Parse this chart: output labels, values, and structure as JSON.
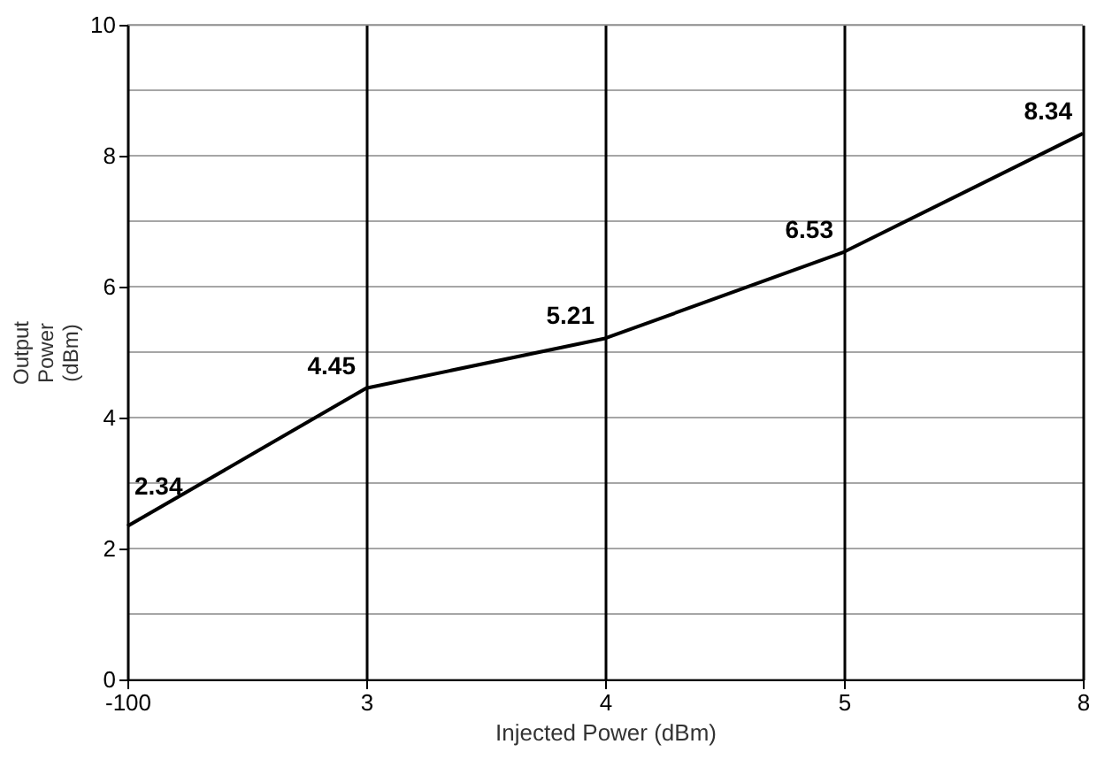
{
  "chart_data": {
    "type": "line",
    "xlabel": "Injected Power (dBm)",
    "ylabel": "Output Power (dBm)",
    "categories": [
      "-100",
      "3",
      "4",
      "5",
      "8"
    ],
    "series": [
      {
        "color": "#000000",
        "values": [
          2.34,
          4.45,
          5.21,
          6.53,
          8.34
        ]
      }
    ],
    "ylim": [
      0,
      10
    ],
    "yticks": [
      0,
      {
        "value": 1,
        "label": null
      },
      2,
      {
        "value": 3,
        "label": null
      },
      4,
      {
        "value": 5,
        "label": null
      },
      6,
      {
        "value": 7,
        "label": null
      },
      8,
      {
        "value": 9,
        "label": null
      },
      10
    ],
    "grid": true,
    "data_labels": true,
    "marker": "none",
    "line_style": "solid"
  }
}
